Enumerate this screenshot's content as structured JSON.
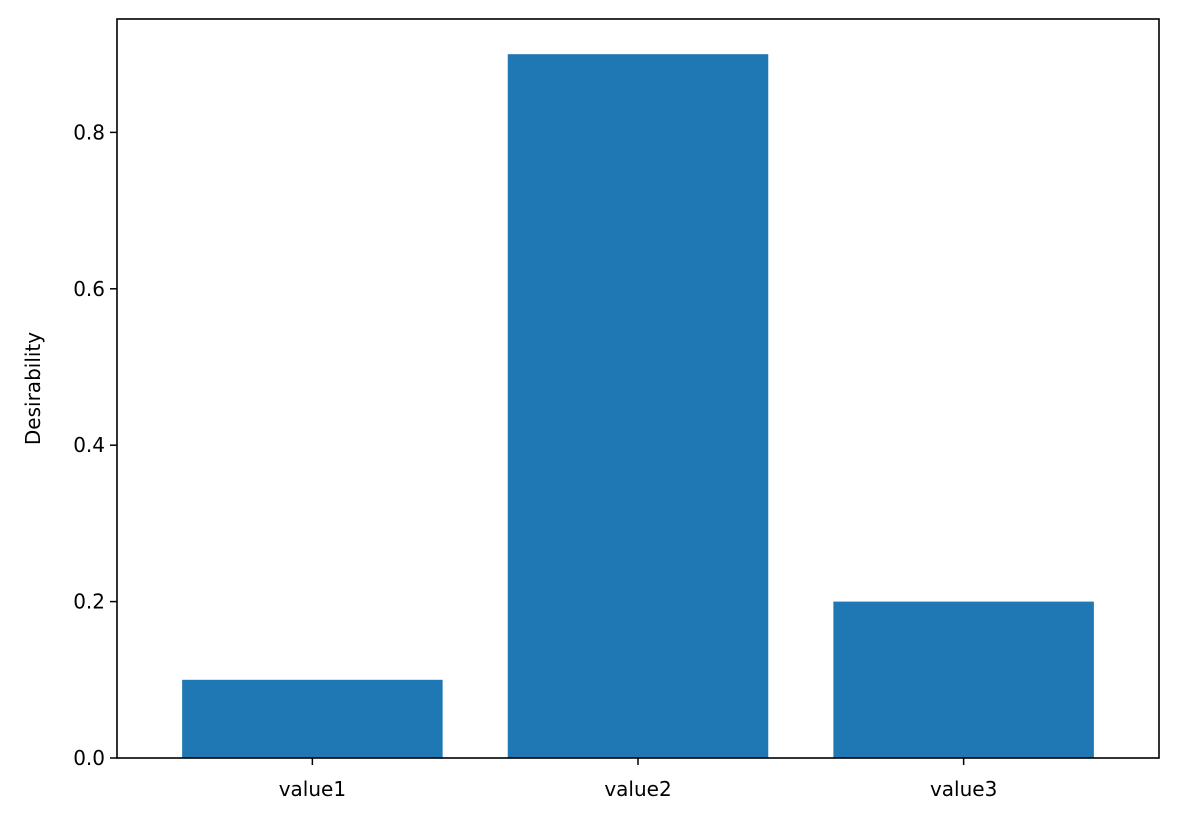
{
  "chart_data": {
    "type": "bar",
    "title": "",
    "xlabel": "",
    "ylabel": "Desirability",
    "categories": [
      "value1",
      "value2",
      "value3"
    ],
    "values": [
      0.1,
      0.9,
      0.2
    ],
    "ylim": [
      0,
      0.945
    ],
    "yticks": [
      0.0,
      0.2,
      0.4,
      0.6,
      0.8
    ],
    "ytick_labels": [
      "0.0",
      "0.2",
      "0.4",
      "0.6",
      "0.8"
    ],
    "grid": false,
    "bar_color": "#1f77b4"
  }
}
